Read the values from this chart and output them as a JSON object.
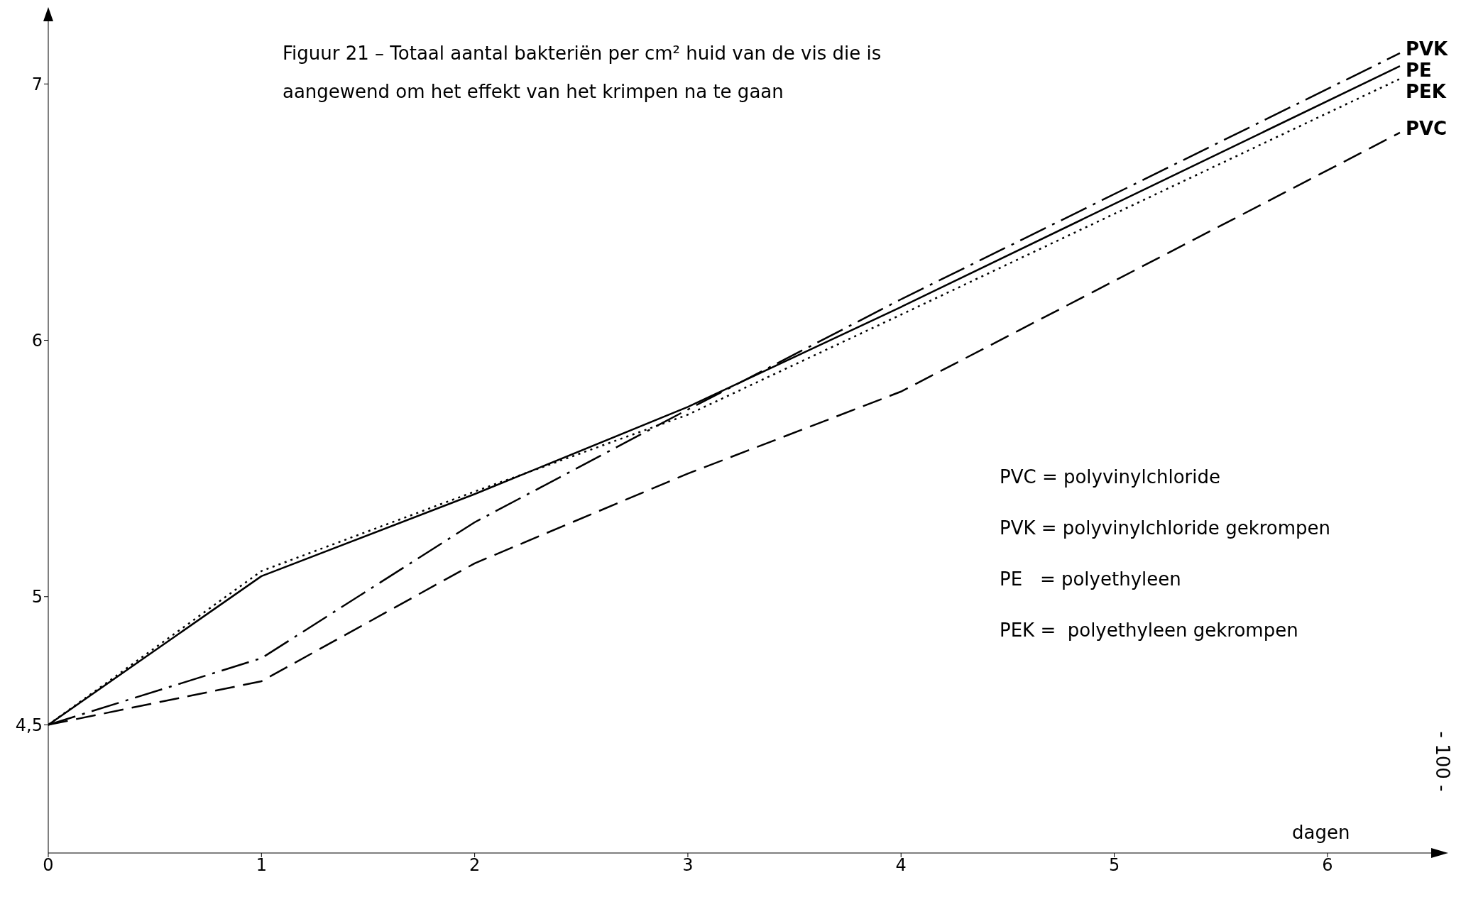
{
  "chart_data": {
    "type": "line",
    "title": "Figuur 21 –  Totaal aantal bakteriën per cm² huid van de vis die is aangewend om het effekt van het krimpen na te gaan",
    "xlabel": "dagen",
    "xlim": [
      0,
      6.5
    ],
    "xticks": [
      0,
      1,
      2,
      3,
      4,
      5,
      6
    ],
    "ylim": [
      4,
      7.25
    ],
    "yticks": [
      {
        "value": 4.5,
        "label": "4,5"
      },
      5,
      6,
      7
    ],
    "marker": "none",
    "x": [
      0,
      1,
      2,
      3,
      4,
      6.34
    ],
    "series": [
      {
        "name": "PVK",
        "color": "#000000",
        "line_style": "dashdot",
        "values": [
          4.5,
          4.76,
          5.29,
          5.73,
          6.16,
          7.12
        ]
      },
      {
        "name": "PE",
        "color": "#000000",
        "line_style": "solid",
        "values": [
          4.5,
          5.08,
          5.4,
          5.74,
          6.13,
          7.07
        ]
      },
      {
        "name": "PEK",
        "color": "#000000",
        "line_style": "dotted",
        "values": [
          4.5,
          5.1,
          5.41,
          5.71,
          6.1,
          7.02
        ]
      },
      {
        "name": "PVC",
        "color": "#000000",
        "line_style": "dashed",
        "values": [
          4.5,
          4.67,
          5.13,
          5.48,
          5.8,
          6.81
        ]
      }
    ],
    "annotations": [
      "PVC = polyvinylchloride",
      "PVK = polyvinylchloride gekrompen",
      "PE   = polyethyleen",
      "PEK =  polyethyleen gekrompen",
      "- 100 -"
    ]
  }
}
